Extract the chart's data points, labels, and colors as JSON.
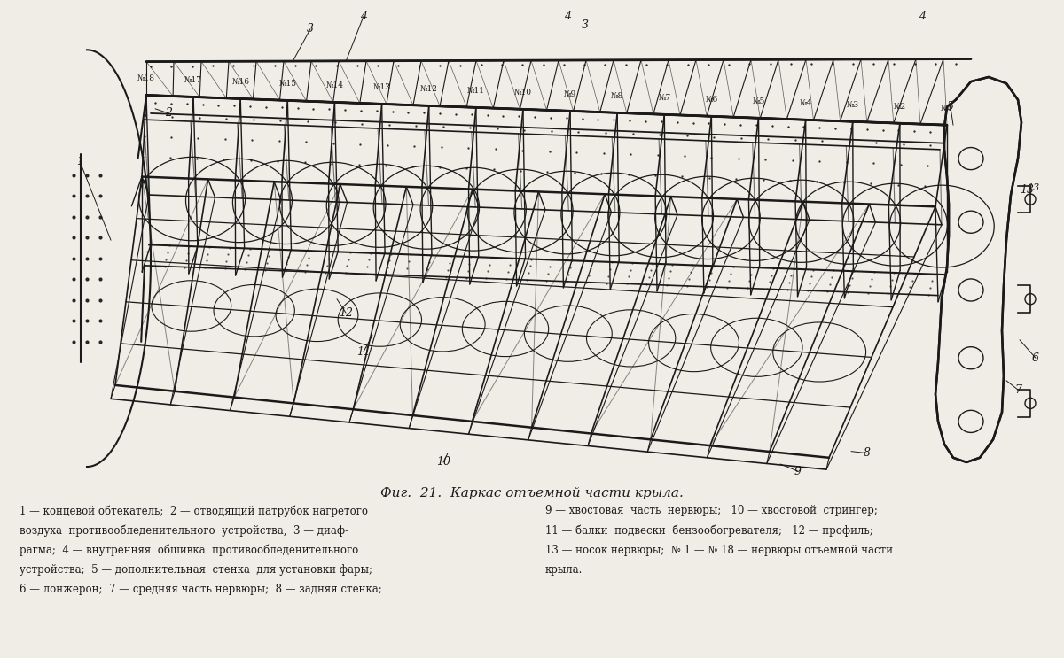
{
  "title": "Фиг.  21.  Каркас отъемной части крыла.",
  "bg": "#f0ede6",
  "lc": "#1a1a1a",
  "caption_left_lines": [
    "1 — концевой обтекатель;  2 — отводящий патрубок нагретого",
    "воздуха  противообледенительного  устройства,  3 — диаф-",
    "рагма;  4 — внутренняя  обшивка  противообледенительного",
    "устройства;  5 — дополнительная  стенка  для установки фары;",
    "6 — лонжерон;  7 — средняя часть нервюры;  8 — задняя стенка;"
  ],
  "caption_right_lines": [
    "9 — хвостовая  часть  нервюры;   10 — хвостовой  стрингер;",
    "11 — балки  подвески  бензообогревателя;   12 — профиль;",
    "13 — носок нервюры;  № 1 — № 18 — нервюры отъемной части",
    "крыла."
  ],
  "rib_labels": [
    "№18",
    "№17",
    "№16",
    "№15",
    "№14",
    "№13",
    "№12",
    "№11",
    "№10",
    "№9",
    "№8",
    "№7",
    "№6",
    "№5",
    "№4",
    "№3",
    "№2",
    "№1"
  ]
}
